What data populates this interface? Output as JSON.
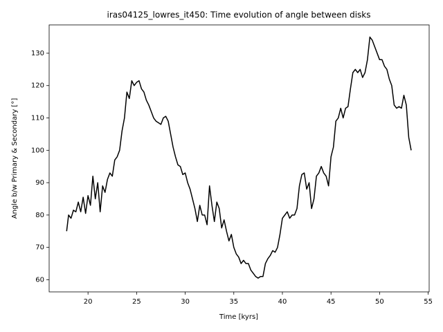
{
  "chart_data": {
    "type": "line",
    "title": "iras04125_lowres_it450: Time evolution of angle between disks",
    "x_label": "Time [kyrs]",
    "y_label": "Angle b/w Primary & Secondary [°]",
    "xlim": [
      16.0,
      55.1
    ],
    "ylim": [
      56.25,
      138.75
    ],
    "xticks": [
      20,
      25,
      30,
      35,
      40,
      45,
      50,
      55
    ],
    "yticks": [
      60,
      70,
      80,
      90,
      100,
      110,
      120,
      130
    ],
    "x": [
      17.8,
      18.0,
      18.25,
      18.5,
      18.75,
      19.0,
      19.25,
      19.5,
      19.75,
      20.0,
      20.25,
      20.5,
      20.75,
      21.0,
      21.25,
      21.5,
      21.75,
      22.0,
      22.25,
      22.5,
      22.75,
      23.0,
      23.25,
      23.5,
      23.75,
      24.0,
      24.25,
      24.5,
      24.75,
      25.0,
      25.25,
      25.5,
      25.75,
      26.0,
      26.25,
      26.5,
      26.75,
      27.0,
      27.25,
      27.5,
      27.75,
      28.0,
      28.25,
      28.5,
      28.75,
      29.0,
      29.25,
      29.5,
      29.75,
      30.0,
      30.25,
      30.5,
      30.75,
      31.0,
      31.25,
      31.5,
      31.75,
      32.0,
      32.25,
      32.5,
      32.75,
      33.0,
      33.25,
      33.5,
      33.75,
      34.0,
      34.25,
      34.5,
      34.75,
      35.0,
      35.25,
      35.5,
      35.75,
      36.0,
      36.25,
      36.5,
      36.75,
      37.0,
      37.25,
      37.5,
      37.75,
      38.0,
      38.25,
      38.5,
      38.75,
      39.0,
      39.25,
      39.5,
      39.75,
      40.0,
      40.25,
      40.5,
      40.75,
      41.0,
      41.25,
      41.5,
      41.75,
      42.0,
      42.25,
      42.5,
      42.75,
      43.0,
      43.25,
      43.5,
      43.75,
      44.0,
      44.25,
      44.5,
      44.75,
      45.0,
      45.25,
      45.5,
      45.75,
      46.0,
      46.25,
      46.5,
      46.75,
      47.0,
      47.25,
      47.5,
      47.75,
      48.0,
      48.25,
      48.5,
      48.75,
      49.0,
      49.25,
      49.5,
      49.75,
      50.0,
      50.25,
      50.5,
      50.75,
      51.0,
      51.25,
      51.5,
      51.75,
      52.0,
      52.25,
      52.5,
      52.75,
      53.0,
      53.25
    ],
    "series": [
      {
        "color": "#000000",
        "values": [
          75,
          80,
          79,
          81.5,
          81,
          84,
          81,
          85.5,
          80.5,
          86,
          83,
          92,
          85,
          90,
          81,
          89,
          87,
          91,
          93,
          92,
          97,
          98,
          100,
          106,
          110,
          118,
          116,
          121.5,
          120,
          121,
          121.5,
          119,
          118,
          115.5,
          114,
          112,
          110,
          109,
          108.5,
          108,
          110,
          110.5,
          109,
          105,
          101,
          98,
          95.5,
          95,
          92.5,
          93,
          90,
          88,
          85,
          82,
          78,
          83,
          80,
          80,
          77,
          89,
          83,
          78,
          84,
          82,
          76,
          78.5,
          75,
          72,
          74,
          70,
          68,
          67,
          65,
          66,
          65,
          65,
          63,
          62,
          61,
          60.5,
          61,
          61,
          65,
          66.5,
          67.5,
          69,
          68.5,
          70,
          74,
          79,
          80,
          81,
          79,
          80,
          80,
          82,
          89,
          92.5,
          93,
          88,
          90,
          82,
          85,
          92,
          93,
          95,
          93,
          92,
          89,
          98,
          101,
          109,
          110,
          113,
          110,
          113,
          113.5,
          119,
          124,
          125,
          124,
          125,
          122.5,
          124,
          128,
          135,
          134,
          132,
          130,
          128,
          128,
          126,
          125,
          122,
          120,
          114,
          113,
          113.5,
          113,
          117,
          114,
          104,
          100
        ]
      }
    ]
  }
}
